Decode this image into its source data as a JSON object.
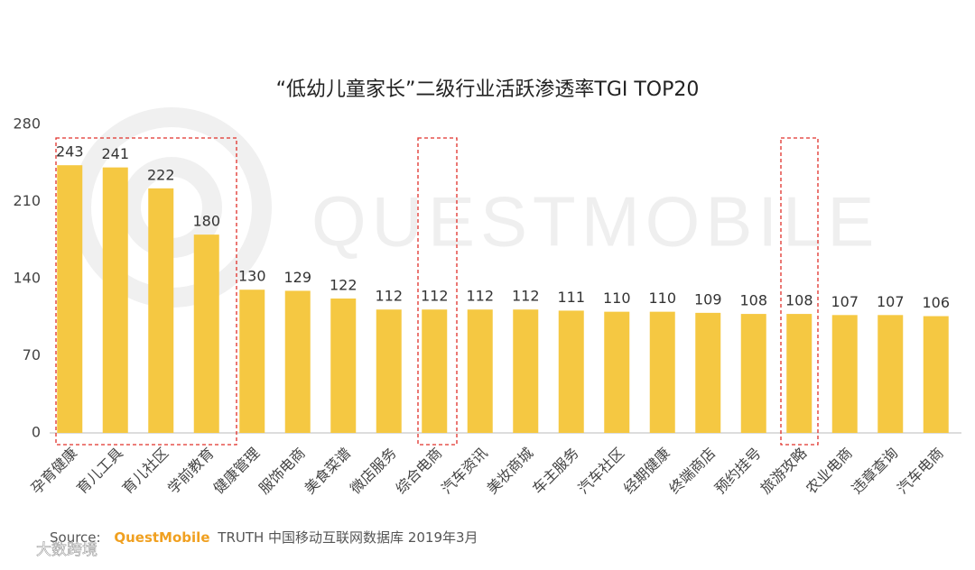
{
  "chart_data": {
    "type": "bar",
    "title": "“低幼儿童家长”二级行业活跃渗透率TGI TOP20",
    "categories": [
      "孕育健康",
      "育儿工具",
      "育儿社区",
      "学前教育",
      "健康管理",
      "服饰电商",
      "美食菜谱",
      "微店服务",
      "综合电商",
      "汽车资讯",
      "美妆商城",
      "车主服务",
      "汽车社区",
      "经期健康",
      "终端商店",
      "预约挂号",
      "旅游攻略",
      "农业电商",
      "违章查询",
      "汽车电商"
    ],
    "values": [
      243,
      241,
      222,
      180,
      130,
      129,
      122,
      112,
      112,
      112,
      112,
      111,
      110,
      110,
      109,
      108,
      108,
      107,
      107,
      106
    ],
    "color": "#f5c842",
    "ylim": [
      0,
      280
    ],
    "yticks": [
      0,
      70,
      140,
      210,
      280
    ],
    "grid": false,
    "source_label": "Source:",
    "source_brand": "QuestMobile",
    "source_text": "TRUTH 中国移动互联网数据库 2019年3月",
    "watermark": "QUESTMOBILE",
    "corner_mark": "大数跨境"
  }
}
